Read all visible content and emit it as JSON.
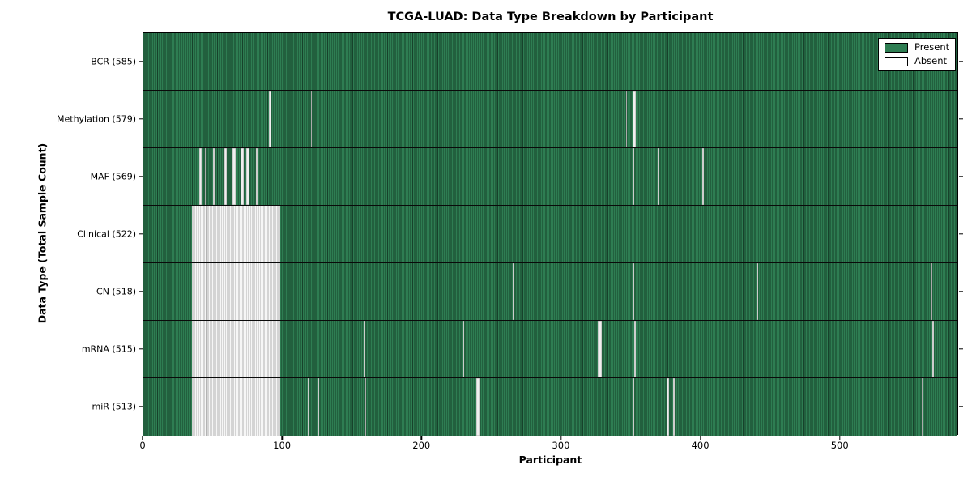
{
  "chart_data": {
    "type": "heatmap",
    "title": "TCGA-LUAD: Data Type Breakdown by Participant",
    "xlabel": "Participant",
    "ylabel": "Data Type (Total Sample Count)",
    "x_ticks": [
      0,
      100,
      200,
      300,
      400,
      500
    ],
    "x_range": [
      0,
      585
    ],
    "n_participants": 585,
    "grid": "row-separators-only",
    "legend_position": "upper right",
    "legend": [
      {
        "label": "Present",
        "color": "#2e7d52"
      },
      {
        "label": "Absent",
        "color": "#ffffff"
      }
    ],
    "colors": {
      "present_fill": "#2e7d52",
      "present_edge": "#17422b",
      "absent_fill": "#f6f6f6",
      "absent_edge": "#b3b3b3",
      "plot_border": "#000000"
    },
    "rows": [
      {
        "label": "BCR (585)",
        "data_type": "BCR",
        "total_samples": 585,
        "absent_ranges": []
      },
      {
        "label": "Methylation (579)",
        "data_type": "Methylation",
        "total_samples": 579,
        "absent_ranges": [
          [
            90,
            91
          ],
          [
            120,
            120
          ],
          [
            346,
            346
          ],
          [
            351,
            352
          ]
        ]
      },
      {
        "label": "MAF (569)",
        "data_type": "MAF",
        "total_samples": 569,
        "absent_ranges": [
          [
            40,
            41
          ],
          [
            44,
            44
          ],
          [
            50,
            50
          ],
          [
            58,
            59
          ],
          [
            64,
            65
          ],
          [
            70,
            71
          ],
          [
            74,
            75
          ],
          [
            81,
            81
          ],
          [
            351,
            351
          ],
          [
            369,
            369
          ],
          [
            401,
            401
          ]
        ]
      },
      {
        "label": "Clinical (522)",
        "data_type": "Clinical",
        "total_samples": 522,
        "absent_ranges": [
          [
            35,
            97
          ]
        ]
      },
      {
        "label": "CN (518)",
        "data_type": "CN",
        "total_samples": 518,
        "absent_ranges": [
          [
            35,
            97
          ],
          [
            265,
            265
          ],
          [
            351,
            351
          ],
          [
            440,
            440
          ],
          [
            565,
            565
          ]
        ]
      },
      {
        "label": "mRNA (515)",
        "data_type": "mRNA",
        "total_samples": 515,
        "absent_ranges": [
          [
            35,
            97
          ],
          [
            158,
            158
          ],
          [
            229,
            229
          ],
          [
            326,
            328
          ],
          [
            352,
            352
          ],
          [
            566,
            566
          ]
        ]
      },
      {
        "label": "miR (513)",
        "data_type": "miR",
        "total_samples": 513,
        "absent_ranges": [
          [
            35,
            97
          ],
          [
            118,
            118
          ],
          [
            125,
            125
          ],
          [
            159,
            159
          ],
          [
            239,
            240
          ],
          [
            351,
            351
          ],
          [
            375,
            376
          ],
          [
            380,
            380
          ],
          [
            558,
            558
          ]
        ]
      }
    ]
  }
}
